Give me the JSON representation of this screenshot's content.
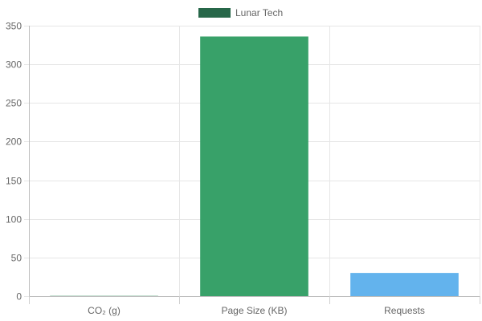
{
  "chart_data": {
    "type": "bar",
    "categories": [
      "CO₂ (g)",
      "Page Size (KB)",
      "Requests"
    ],
    "series": [
      {
        "name": "Lunar Tech",
        "values": [
          0.3,
          336,
          30
        ]
      }
    ],
    "bar_colors": [
      "#2e8b57",
      "#38a169",
      "#63b3ed"
    ],
    "legend_color": "#276749",
    "ylim": [
      0,
      350
    ],
    "yticks": [
      0,
      50,
      100,
      150,
      200,
      250,
      300,
      350
    ],
    "grid": true,
    "legend_position": "top-center",
    "title": "",
    "xlabel": "",
    "ylabel": ""
  }
}
